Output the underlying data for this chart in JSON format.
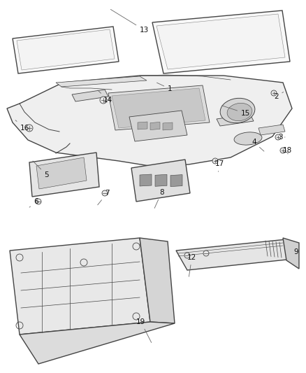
{
  "background_color": "#ffffff",
  "line_color": "#444444",
  "fig_width": 4.38,
  "fig_height": 5.33,
  "dpi": 100,
  "label_fontsize": 7.5
}
